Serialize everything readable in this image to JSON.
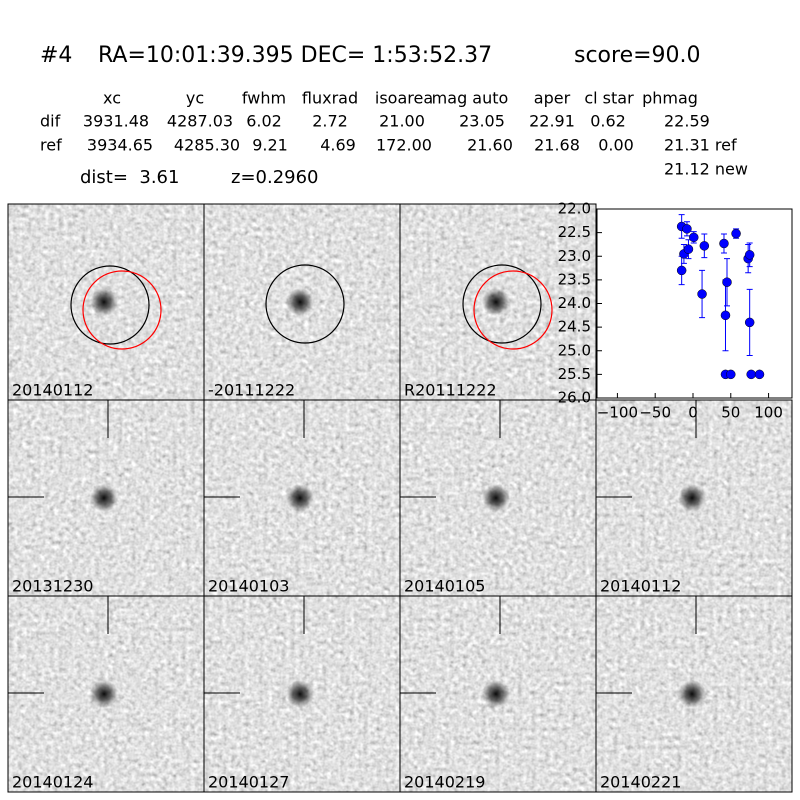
{
  "header": {
    "id": "#4",
    "coords": "RA=10:01:39.395 DEC= 1:53:52.37",
    "score": "score=90.0"
  },
  "table": {
    "columns": [
      "xc",
      "yc",
      "fwhm",
      "fluxrad",
      "isoarea",
      "mag auto",
      "aper",
      "cl star",
      "phmag"
    ],
    "rows": [
      [
        "dif",
        "3931.48",
        "4287.03",
        "6.02",
        "2.72",
        "21.00",
        "23.05",
        "22.91",
        "0.62",
        "22.59"
      ],
      [
        "ref",
        "3934.65",
        "4285.30",
        "9.21",
        "4.69",
        "172.00",
        "21.60",
        "21.68",
        "0.00",
        "21.31 ref"
      ]
    ],
    "extra": "21.12 new"
  },
  "dist": "dist=  3.61",
  "z": "z=0.2960",
  "stamps": [
    {
      "label": "20140112",
      "color": "#000000"
    },
    {
      "label": "-20111222",
      "color": "#000000"
    },
    {
      "label": "R20111222",
      "color": "#000000"
    },
    {
      "label": "20131230",
      "color": "#000000"
    },
    {
      "label": "20140103",
      "color": "#000000"
    },
    {
      "label": "20140105",
      "color": "#000000"
    },
    {
      "label": "20140112",
      "color": "#ff0000"
    },
    {
      "label": "20140124",
      "color": "#000000"
    },
    {
      "label": "20140127",
      "color": "#000000"
    },
    {
      "label": "20140219",
      "color": "#000000"
    },
    {
      "label": "20140221",
      "color": "#000000"
    }
  ],
  "chart_data": {
    "type": "scatter",
    "color": "#0000ff",
    "x": [
      -15,
      -15,
      -12,
      -8,
      -6,
      1,
      15,
      12,
      41,
      43,
      45,
      57,
      73,
      75,
      75,
      43,
      50,
      77,
      88
    ],
    "values": [
      22.37,
      23.3,
      22.95,
      22.42,
      22.85,
      22.6,
      22.78,
      23.8,
      22.73,
      24.25,
      23.55,
      22.52,
      23.05,
      22.97,
      24.4,
      25.5,
      25.5,
      25.5,
      25.5
    ],
    "errors": [
      0.25,
      0.3,
      0.2,
      0.15,
      0.2,
      0.12,
      0.25,
      0.5,
      0.2,
      0.75,
      0.5,
      0.1,
      0.3,
      0.25,
      0.7,
      0.05,
      0.05,
      0.05,
      0.05
    ],
    "xlim": [
      -127,
      131
    ],
    "ylim": [
      26,
      22
    ],
    "xticks": [
      {
        "value": -100,
        "label": "−100"
      },
      {
        "value": -50,
        "label": "−50"
      },
      0,
      50,
      100
    ],
    "yticks": [
      {
        "value": 22,
        "label": "22.0"
      },
      {
        "value": 22.5,
        "label": "22.5"
      },
      {
        "value": 23,
        "label": "23.0"
      },
      {
        "value": 23.5,
        "label": "23.5"
      },
      {
        "value": 24,
        "label": "24.0"
      },
      {
        "value": 24.5,
        "label": "24.5"
      },
      {
        "value": 25,
        "label": "25.0"
      },
      {
        "value": 25.5,
        "label": "25.5"
      },
      {
        "value": 26,
        "label": "26.0"
      }
    ]
  }
}
